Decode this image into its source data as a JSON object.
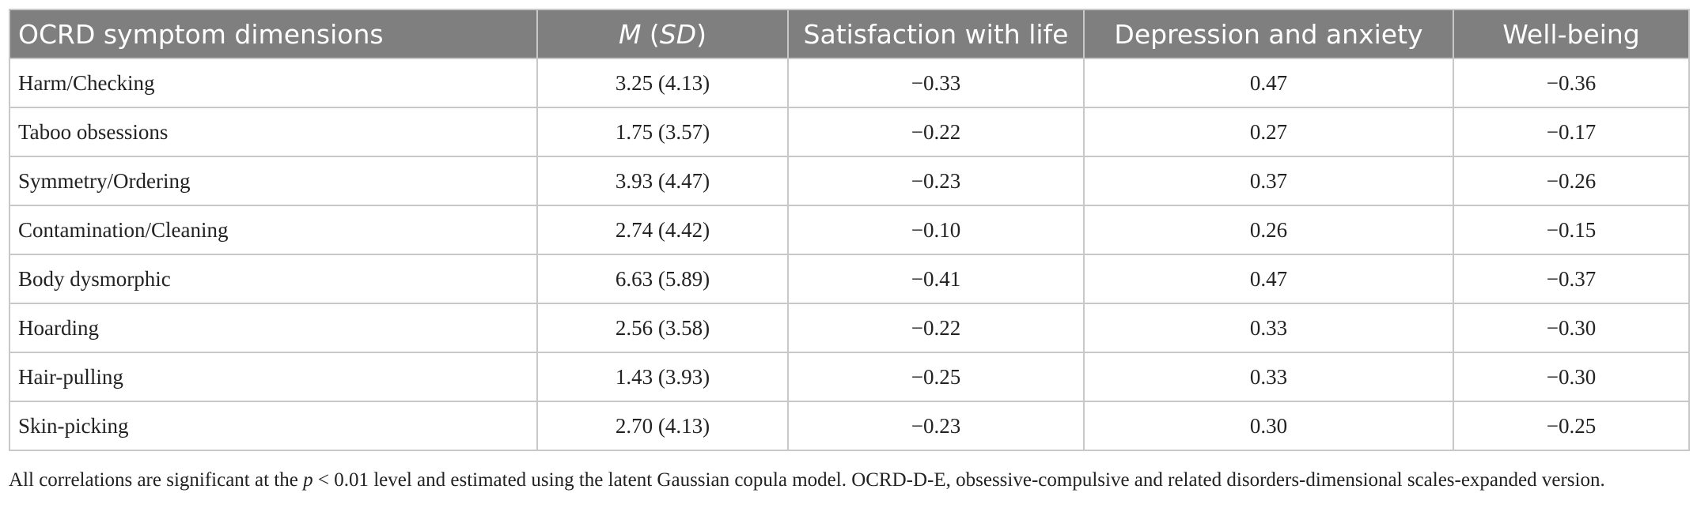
{
  "table": {
    "headers": {
      "dimension": "OCRD symptom dimensions",
      "m": "M",
      "sd": "SD",
      "satisfaction": "Satisfaction with life",
      "depression": "Depression and anxiety",
      "wellbeing": "Well-being"
    },
    "rows": [
      {
        "dimension": "Harm/Checking",
        "msd": "3.25 (4.13)",
        "satisfaction": "−0.33",
        "depression": "0.47",
        "wellbeing": "−0.36"
      },
      {
        "dimension": "Taboo obsessions",
        "msd": "1.75 (3.57)",
        "satisfaction": "−0.22",
        "depression": "0.27",
        "wellbeing": "−0.17"
      },
      {
        "dimension": "Symmetry/Ordering",
        "msd": "3.93 (4.47)",
        "satisfaction": "−0.23",
        "depression": "0.37",
        "wellbeing": "−0.26"
      },
      {
        "dimension": "Contamination/Cleaning",
        "msd": "2.74 (4.42)",
        "satisfaction": "−0.10",
        "depression": "0.26",
        "wellbeing": "−0.15"
      },
      {
        "dimension": "Body dysmorphic",
        "msd": "6.63 (5.89)",
        "satisfaction": "−0.41",
        "depression": "0.47",
        "wellbeing": "−0.37"
      },
      {
        "dimension": "Hoarding",
        "msd": "2.56 (3.58)",
        "satisfaction": "−0.22",
        "depression": "0.33",
        "wellbeing": "−0.30"
      },
      {
        "dimension": "Hair-pulling",
        "msd": "1.43 (3.93)",
        "satisfaction": "−0.25",
        "depression": "0.33",
        "wellbeing": "−0.30"
      },
      {
        "dimension": "Skin-picking",
        "msd": "2.70 (4.13)",
        "satisfaction": "−0.23",
        "depression": "0.30",
        "wellbeing": "−0.25"
      }
    ]
  },
  "note": {
    "before_p": "All correlations are significant at the ",
    "p": "p",
    "after_p": " < 0.01 level and estimated using the latent Gaussian copula model. OCRD-D-E, obsessive-compulsive and related disorders-dimensional scales-expanded version."
  }
}
